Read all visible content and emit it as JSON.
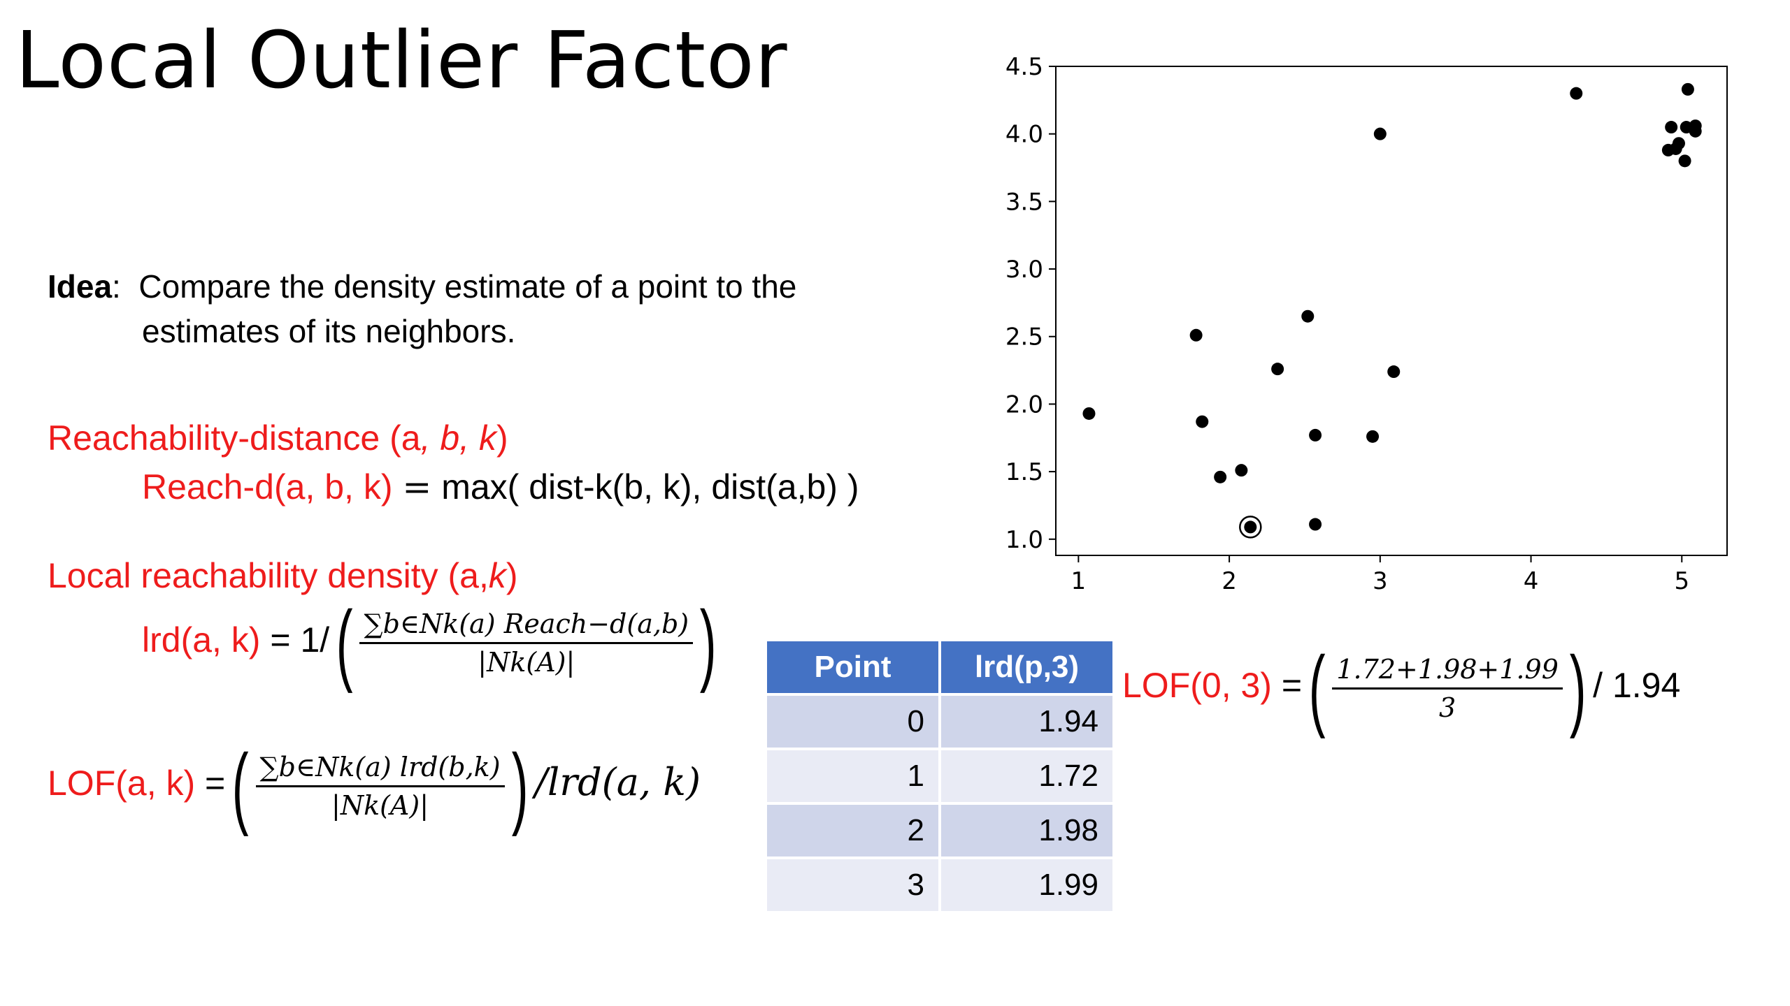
{
  "title": "Local Outlier Factor",
  "idea": {
    "label": "Idea",
    "text_line1": "Compare the density estimate of a point to the",
    "text_line2": "estimates of its neighbors."
  },
  "reach": {
    "heading_prefix": "Reachability-distance (a",
    "heading_b": ", b",
    "heading_k": ", k",
    "heading_close": ")",
    "lhs": "Reach-d(a, b, k)",
    "eq": "=",
    "rhs": "max( dist-k(b, k), dist(a,b) )"
  },
  "lrd": {
    "heading_prefix": "Local reachability density (a,",
    "heading_k": "k",
    "heading_close": ")",
    "lhs": "lrd(a, k)",
    "eq": "= 1/",
    "num": "∑b∈Nk(a) Reach−d(a,b)",
    "den": "|Nk(A)|"
  },
  "lof": {
    "lhs": "LOF(a, k)",
    "eq": "=",
    "num": "∑b∈Nk(a) lrd(b,k)",
    "den": "|Nk(A)|",
    "tail": "/lrd(a, k)"
  },
  "example": {
    "lhs": "LOF(0, 3)",
    "eq": "=",
    "num": "1.72+1.98+1.99",
    "den": "3",
    "tail": "/ 1.94"
  },
  "table": {
    "headers": [
      "Point",
      "lrd(p,3)"
    ],
    "rows": [
      [
        "0",
        "1.94"
      ],
      [
        "1",
        "1.72"
      ],
      [
        "2",
        "1.98"
      ],
      [
        "3",
        "1.99"
      ]
    ],
    "header_color": "#4472c4"
  },
  "colors": {
    "accent": "#ee1c1c",
    "points": "#000000"
  },
  "chart_data": {
    "type": "scatter",
    "xlim": [
      0.85,
      5.3
    ],
    "ylim": [
      0.88,
      4.5
    ],
    "xticks": [
      1,
      2,
      3,
      4,
      5
    ],
    "yticks": [
      "1.0",
      "1.5",
      "2.0",
      "2.5",
      "3.0",
      "3.5",
      "4.0",
      "4.5"
    ],
    "grid": false,
    "points": [
      [
        1.07,
        1.93
      ],
      [
        1.78,
        2.51
      ],
      [
        1.82,
        1.87
      ],
      [
        1.94,
        1.46
      ],
      [
        2.08,
        1.51
      ],
      [
        2.32,
        2.26
      ],
      [
        2.52,
        2.65
      ],
      [
        2.57,
        1.77
      ],
      [
        2.57,
        1.11
      ],
      [
        2.95,
        1.76
      ],
      [
        3.0,
        4.0
      ],
      [
        3.09,
        2.24
      ],
      [
        4.3,
        4.3
      ],
      [
        5.04,
        4.33
      ],
      [
        4.93,
        4.05
      ],
      [
        5.03,
        4.05
      ],
      [
        5.09,
        4.06
      ],
      [
        5.09,
        4.02
      ],
      [
        4.98,
        3.93
      ],
      [
        4.91,
        3.88
      ],
      [
        5.02,
        3.8
      ],
      [
        4.96,
        3.89
      ]
    ],
    "highlighted_point": [
      2.14,
      1.09
    ]
  }
}
